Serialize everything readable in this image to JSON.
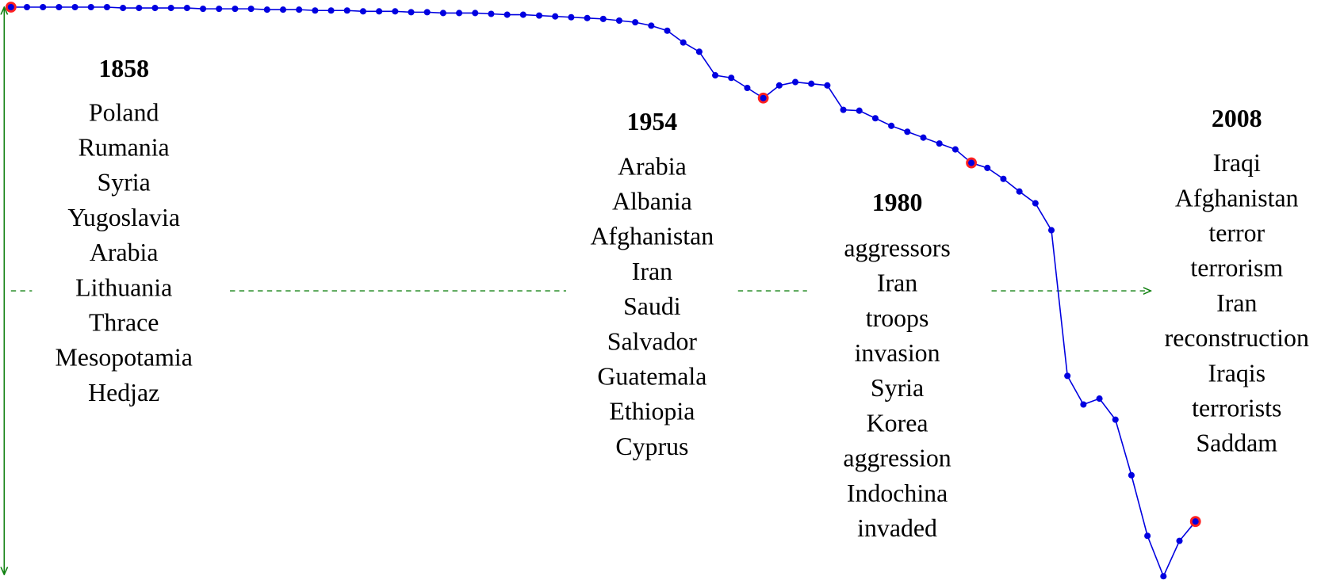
{
  "chart_data": {
    "type": "line",
    "values": [
      677,
      677,
      677,
      677,
      677,
      677,
      677,
      676,
      676,
      676,
      676,
      676,
      675,
      675,
      675,
      675,
      674,
      674,
      674,
      673,
      673,
      673,
      672,
      672,
      672,
      671,
      671,
      670,
      670,
      670,
      669,
      668,
      668,
      667,
      666,
      665,
      664,
      663,
      661,
      659,
      655,
      649,
      635,
      624,
      596,
      593,
      581,
      569,
      584,
      588,
      586,
      584,
      555,
      554,
      545,
      536,
      529,
      522,
      515,
      508,
      492,
      486,
      473,
      458,
      444,
      412,
      239,
      205,
      212,
      187,
      121,
      49,
      1,
      43,
      66
    ],
    "color": "#0000e0",
    "highlight_color": "#ff2020",
    "highlighted": [
      0,
      47,
      60,
      74
    ],
    "ylim": [
      0,
      677
    ],
    "groups": [
      {
        "title": "1858",
        "words": [
          "Poland",
          "Rumania",
          "Syria",
          "Yugoslavia",
          "Arabia",
          "Lithuania",
          "Thrace",
          "Mesopotamia",
          "Hedjaz"
        ]
      },
      {
        "title": "1954",
        "words": [
          "Arabia",
          "Albania",
          "Afghanistan",
          "Iran",
          "Saudi",
          "Salvador",
          "Guatemala",
          "Ethiopia",
          "Cyprus"
        ]
      },
      {
        "title": "1980",
        "words": [
          "aggressors",
          "Iran",
          "troops",
          "invasion",
          "Syria",
          "Korea",
          "aggression",
          "Indochina",
          "invaded"
        ]
      },
      {
        "title": "2008",
        "words": [
          "Iraqi",
          "Afghanistan",
          "terror",
          "terrorism",
          "Iran",
          "reconstruction",
          "Iraqis",
          "terrorists",
          "Saddam"
        ]
      }
    ]
  }
}
